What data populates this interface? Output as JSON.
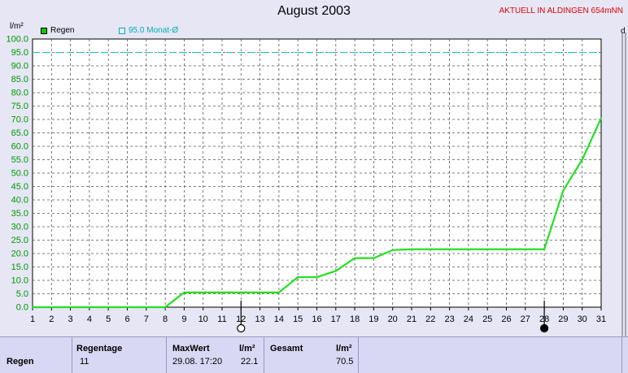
{
  "title": "August 2003",
  "station": "AKTUELL IN ALDINGEN 654mNN",
  "y_unit": "l/m²",
  "right_unit": "d",
  "legend": {
    "regen": "Regen",
    "monat": "95.0 Monat-Ø"
  },
  "colors": {
    "series": "#22e022",
    "reference": "#00cccc",
    "grid": "#555555",
    "background": "#e6e6f5",
    "plot": "#ffffff",
    "station": "#e00000"
  },
  "chart_data": {
    "type": "line",
    "title": "August 2003",
    "ylabel": "l/m²",
    "xlabel": "",
    "xlim": [
      1,
      31
    ],
    "ylim": [
      0,
      100
    ],
    "y_ticks": [
      "0.0",
      "5.0",
      "10.0",
      "15.0",
      "20.0",
      "25.0",
      "30.0",
      "35.0",
      "40.0",
      "45.0",
      "50.0",
      "55.0",
      "60.0",
      "65.0",
      "70.0",
      "75.0",
      "80.0",
      "85.0",
      "90.0",
      "95.0",
      "100.0"
    ],
    "x_ticks": [
      "1",
      "2",
      "3",
      "4",
      "5",
      "6",
      "7",
      "8",
      "9",
      "10",
      "11",
      "12",
      "13",
      "14",
      "15",
      "16",
      "17",
      "18",
      "19",
      "20",
      "21",
      "22",
      "23",
      "24",
      "25",
      "26",
      "27",
      "28",
      "29",
      "30",
      "31"
    ],
    "grid": true,
    "legend_position": "top-left",
    "reference_line": {
      "name": "95.0 Monat-Ø",
      "value": 95.0
    },
    "series": [
      {
        "name": "Regen",
        "x": [
          1,
          2,
          3,
          4,
          5,
          6,
          7,
          8,
          9,
          10,
          11,
          12,
          13,
          14,
          15,
          16,
          17,
          18,
          19,
          20,
          21,
          22,
          23,
          24,
          25,
          26,
          27,
          28,
          29,
          30,
          31
        ],
        "values": [
          0,
          0,
          0,
          0,
          0,
          0,
          0,
          0,
          5.5,
          5.5,
          5.5,
          5.5,
          5.5,
          5.5,
          11.2,
          11.2,
          13.5,
          18.3,
          18.3,
          21.3,
          21.6,
          21.6,
          21.6,
          21.6,
          21.6,
          21.6,
          21.6,
          21.6,
          43.5,
          55,
          70.5
        ]
      }
    ],
    "moon_markers": [
      {
        "day": 12,
        "phase": "full"
      },
      {
        "day": 28,
        "phase": "new"
      }
    ]
  },
  "stats": {
    "row_label": "Regen",
    "regentage_header": "Regentage",
    "regentage_value": "11",
    "maxwert_header": "MaxWert",
    "maxwert_unit": "l/m²",
    "maxwert_time": "29.08. 17:20",
    "maxwert_value": "22.1",
    "gesamt_header": "Gesamt",
    "gesamt_unit": "l/m²",
    "gesamt_value": "70.5"
  }
}
